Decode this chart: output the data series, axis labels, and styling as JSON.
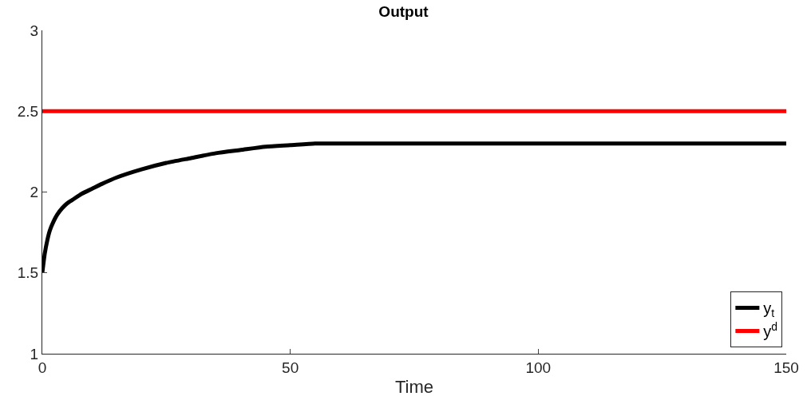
{
  "chart_data": {
    "type": "line",
    "title": "Output",
    "xlabel": "Time",
    "x": [
      0,
      0.5,
      1,
      1.5,
      2,
      3,
      4,
      5,
      6,
      8,
      10,
      12,
      15,
      20,
      25,
      30,
      35,
      40,
      45,
      50,
      55,
      60,
      70,
      80,
      100,
      120,
      150
    ],
    "series": [
      {
        "name": "y$_{t}$",
        "color": "#000000",
        "values": [
          1.5,
          1.62,
          1.7,
          1.76,
          1.8,
          1.86,
          1.9,
          1.93,
          1.95,
          1.99,
          2.02,
          2.05,
          2.09,
          2.14,
          2.18,
          2.21,
          2.24,
          2.26,
          2.28,
          2.29,
          2.3,
          2.3,
          2.3,
          2.3,
          2.3,
          2.3,
          2.3
        ]
      },
      {
        "name": "y$^{d}$",
        "color": "#ff0000",
        "x": [
          0,
          150
        ],
        "values": [
          2.5,
          2.5
        ]
      }
    ],
    "xlim": [
      0,
      150
    ],
    "xticks": [
      0,
      50,
      100,
      150
    ],
    "ylim": [
      1,
      3
    ],
    "yticks": [
      1,
      1.5,
      2,
      2.5,
      3
    ],
    "grid": false,
    "legend": "bottom right",
    "marker": "none",
    "line_style": "solid"
  }
}
